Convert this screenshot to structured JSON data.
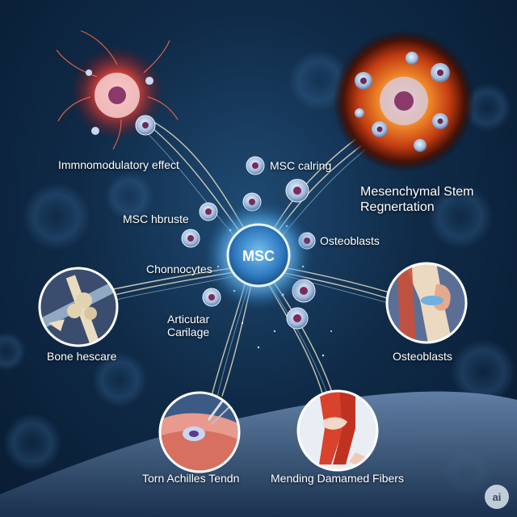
{
  "labels": {
    "immunomodulatory": "Immnomodulatory effect",
    "msc_calling": "MSC calring",
    "mesenchymal_line1": "Mesenchymal Stem",
    "mesenchymal_line2": "Regnertation",
    "msc_horuste": "MSC hbruste",
    "osteoblasts_center": "Osteoblasts",
    "chondrocytes": "Chonnocytes",
    "articular_line1": "Articutar",
    "articular_line2": "Carilage",
    "bone": "Bone hescare",
    "osteoblasts_right": "Osteoblasts",
    "torn": "Torn Achilles Tendn",
    "mending": "Mending Damamed Fibers"
  },
  "center": {
    "label": "MSC"
  },
  "badge": "ai",
  "colors": {
    "background": "#0f2a47",
    "glow": "#9fd8ff",
    "inflammation": "#e83a32",
    "regeneration": "#f07a1a",
    "cell": "#b8cde6",
    "nucleus": "#8a3a6a"
  },
  "icons": {
    "immune_cell": "inflamed-immune-cell-icon",
    "regeneration_cell": "regenerating-stem-cell-icon",
    "bone": "bone-joint-icon",
    "knee": "knee-cartilage-icon",
    "tendon": "torn-tendon-icon",
    "leg": "muscle-fibers-icon"
  }
}
